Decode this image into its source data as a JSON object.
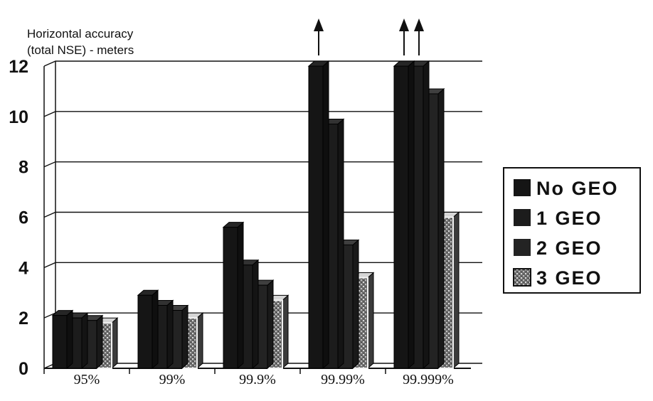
{
  "chart_data": {
    "type": "bar",
    "ylabel_lines": [
      "Horizontal accuracy",
      "(total NSE) - meters"
    ],
    "y_ticks": [
      "0",
      "2",
      "4",
      "6",
      "8",
      "10",
      "12"
    ],
    "ylim": [
      0,
      12
    ],
    "categories": [
      "95%",
      "99%",
      "99.9%",
      "99.99%",
      "99.999%"
    ],
    "series": [
      {
        "name": "No GEO",
        "values": [
          2.1,
          2.9,
          5.6,
          12,
          12
        ],
        "color": "#151515"
      },
      {
        "name": "1 GEO",
        "values": [
          2.0,
          2.5,
          4.1,
          9.7,
          12
        ],
        "color": "#1c1c1c"
      },
      {
        "name": "2 GEO",
        "values": [
          1.9,
          2.3,
          3.3,
          4.9,
          10.9
        ],
        "color": "#232323"
      },
      {
        "name": "3 GEO",
        "values": [
          1.8,
          2.0,
          2.7,
          3.6,
          6.0
        ],
        "color": "#8a8a8a"
      }
    ],
    "offscale_arrows": [
      {
        "category": "99.99%",
        "series": "No GEO"
      },
      {
        "category": "99.999%",
        "series": "No GEO"
      },
      {
        "category": "99.999%",
        "series": "1 GEO"
      }
    ],
    "grid": true,
    "legend_position": "right"
  }
}
